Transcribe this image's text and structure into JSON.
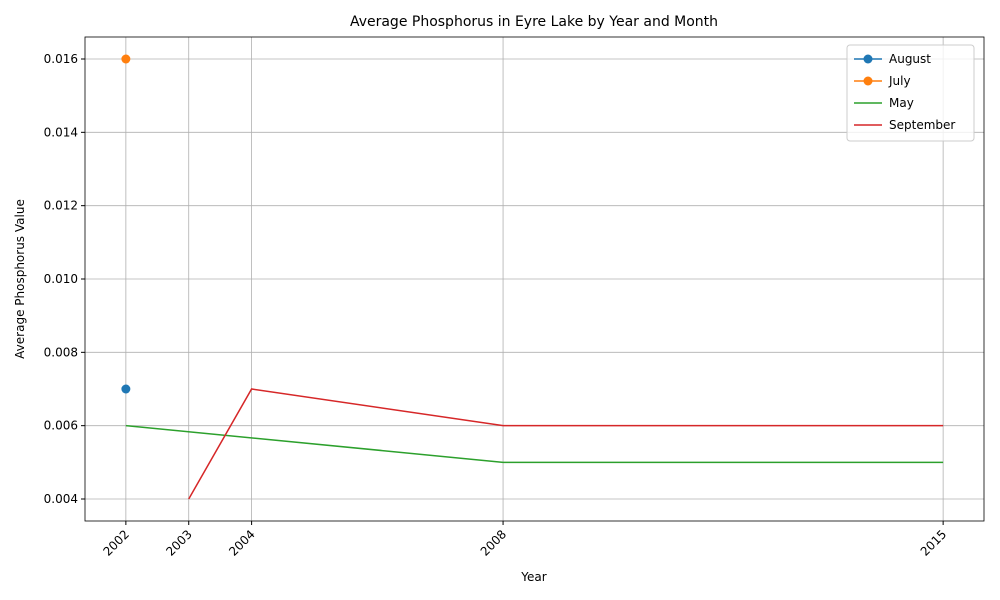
{
  "chart_data": {
    "type": "line",
    "title": "Average Phosphorus in Eyre Lake by Year and Month",
    "xlabel": "Year",
    "ylabel": "Average Phosphorus Value",
    "series": [
      {
        "name": "August",
        "color": "#1f77b4",
        "marker": true,
        "x": [
          2002
        ],
        "values": [
          0.007
        ]
      },
      {
        "name": "July",
        "color": "#ff7f0e",
        "marker": true,
        "x": [
          2002
        ],
        "values": [
          0.016
        ]
      },
      {
        "name": "May",
        "color": "#2ca02c",
        "marker": false,
        "x": [
          2002,
          2008,
          2015
        ],
        "values": [
          0.006,
          0.005,
          0.005
        ]
      },
      {
        "name": "September",
        "color": "#d62728",
        "marker": false,
        "x": [
          2003,
          2004,
          2008,
          2015
        ],
        "values": [
          0.004,
          0.007,
          0.006,
          0.006
        ]
      }
    ],
    "xlim": [
      2001.35,
      2015.65
    ],
    "xticks": [
      2002,
      2003,
      2004,
      2008,
      2015
    ],
    "ylim": [
      0.0034,
      0.0166
    ],
    "yticks": [
      0.004,
      0.006,
      0.008,
      {
        "value": 0.01,
        "label": "0.010"
      },
      0.012,
      0.014,
      0.016
    ],
    "grid": true,
    "legend": "upper-right"
  }
}
